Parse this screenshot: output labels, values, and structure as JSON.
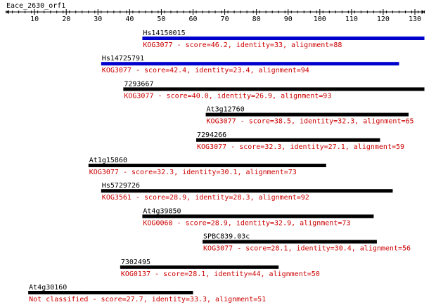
{
  "query": {
    "name": "Eace_2630_orf1"
  },
  "ruler": {
    "min": 1,
    "max": 133,
    "tick_labels": [
      10,
      20,
      30,
      40,
      50,
      60,
      70,
      80,
      90,
      100,
      110,
      120,
      130
    ],
    "minor_tick_step": 2
  },
  "colors": {
    "background": "#ffffff",
    "text": "#000000",
    "description": "#cc0000",
    "bar_high": "#0000cc",
    "bar_low": "#000000",
    "ruler": "#000000"
  },
  "hits": [
    {
      "name": "Hs14150015",
      "description": "KOG3077 - score=46.2, identity=33, alignment=88",
      "start": 44,
      "end": 133,
      "bar_color": "#0000cc"
    },
    {
      "name": "Hs14725791",
      "description": "KOG3077 - score=42.4, identity=23.4, alignment=94",
      "start": 31,
      "end": 125,
      "bar_color": "#0000cc"
    },
    {
      "name": "7293667",
      "description": "KOG3077 - score=40.0, identity=26.9, alignment=93",
      "start": 38,
      "end": 133,
      "bar_color": "#000000"
    },
    {
      "name": "At3g12760",
      "description": "KOG3077 - score=38.5, identity=32.3, alignment=65",
      "start": 64,
      "end": 128,
      "bar_color": "#000000"
    },
    {
      "name": "7294266",
      "description": "KOG3077 - score=32.3, identity=27.1, alignment=59",
      "start": 61,
      "end": 119,
      "bar_color": "#000000"
    },
    {
      "name": "At1g15860",
      "description": "KOG3077 - score=32.3, identity=30.1, alignment=73",
      "start": 27,
      "end": 102,
      "bar_color": "#000000"
    },
    {
      "name": "Hs5729726",
      "description": "KOG3561 - score=28.9, identity=28.3, alignment=92",
      "start": 31,
      "end": 123,
      "bar_color": "#000000"
    },
    {
      "name": "At4g39850",
      "description": "KOG0060 - score=28.9, identity=32.9, alignment=73",
      "start": 44,
      "end": 117,
      "bar_color": "#000000"
    },
    {
      "name": "SPBC839.03c",
      "description": "KOG3077 - score=28.1, identity=30.4, alignment=56",
      "start": 63,
      "end": 118,
      "bar_color": "#000000"
    },
    {
      "name": "7302495",
      "description": "KOG0137 - score=28.1, identity=44, alignment=50",
      "start": 37,
      "end": 87,
      "bar_color": "#000000"
    },
    {
      "name": "At4g30160",
      "description": "Not classified - score=27.7, identity=33.3, alignment=51",
      "start": 8,
      "end": 60,
      "bar_color": "#000000"
    }
  ]
}
